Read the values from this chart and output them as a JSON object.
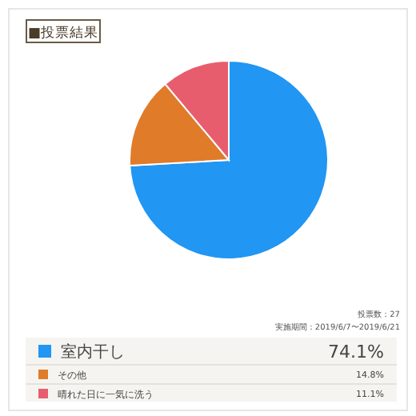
{
  "chart_data": {
    "type": "pie",
    "title": "■投票結果",
    "categories": [
      "室内干し",
      "その他",
      "晴れた日に一気に洗う"
    ],
    "values": [
      74.1,
      14.8,
      11.1
    ],
    "colors": [
      "#2196f3",
      "#e07b2a",
      "#e85d6e"
    ],
    "annotations": [
      "投票数：27",
      "実施期間：2019/6/7〜2019/6/21"
    ],
    "value_labels": [
      "74.1%",
      "14.8%",
      "11.1%"
    ],
    "legend": "bottom"
  }
}
